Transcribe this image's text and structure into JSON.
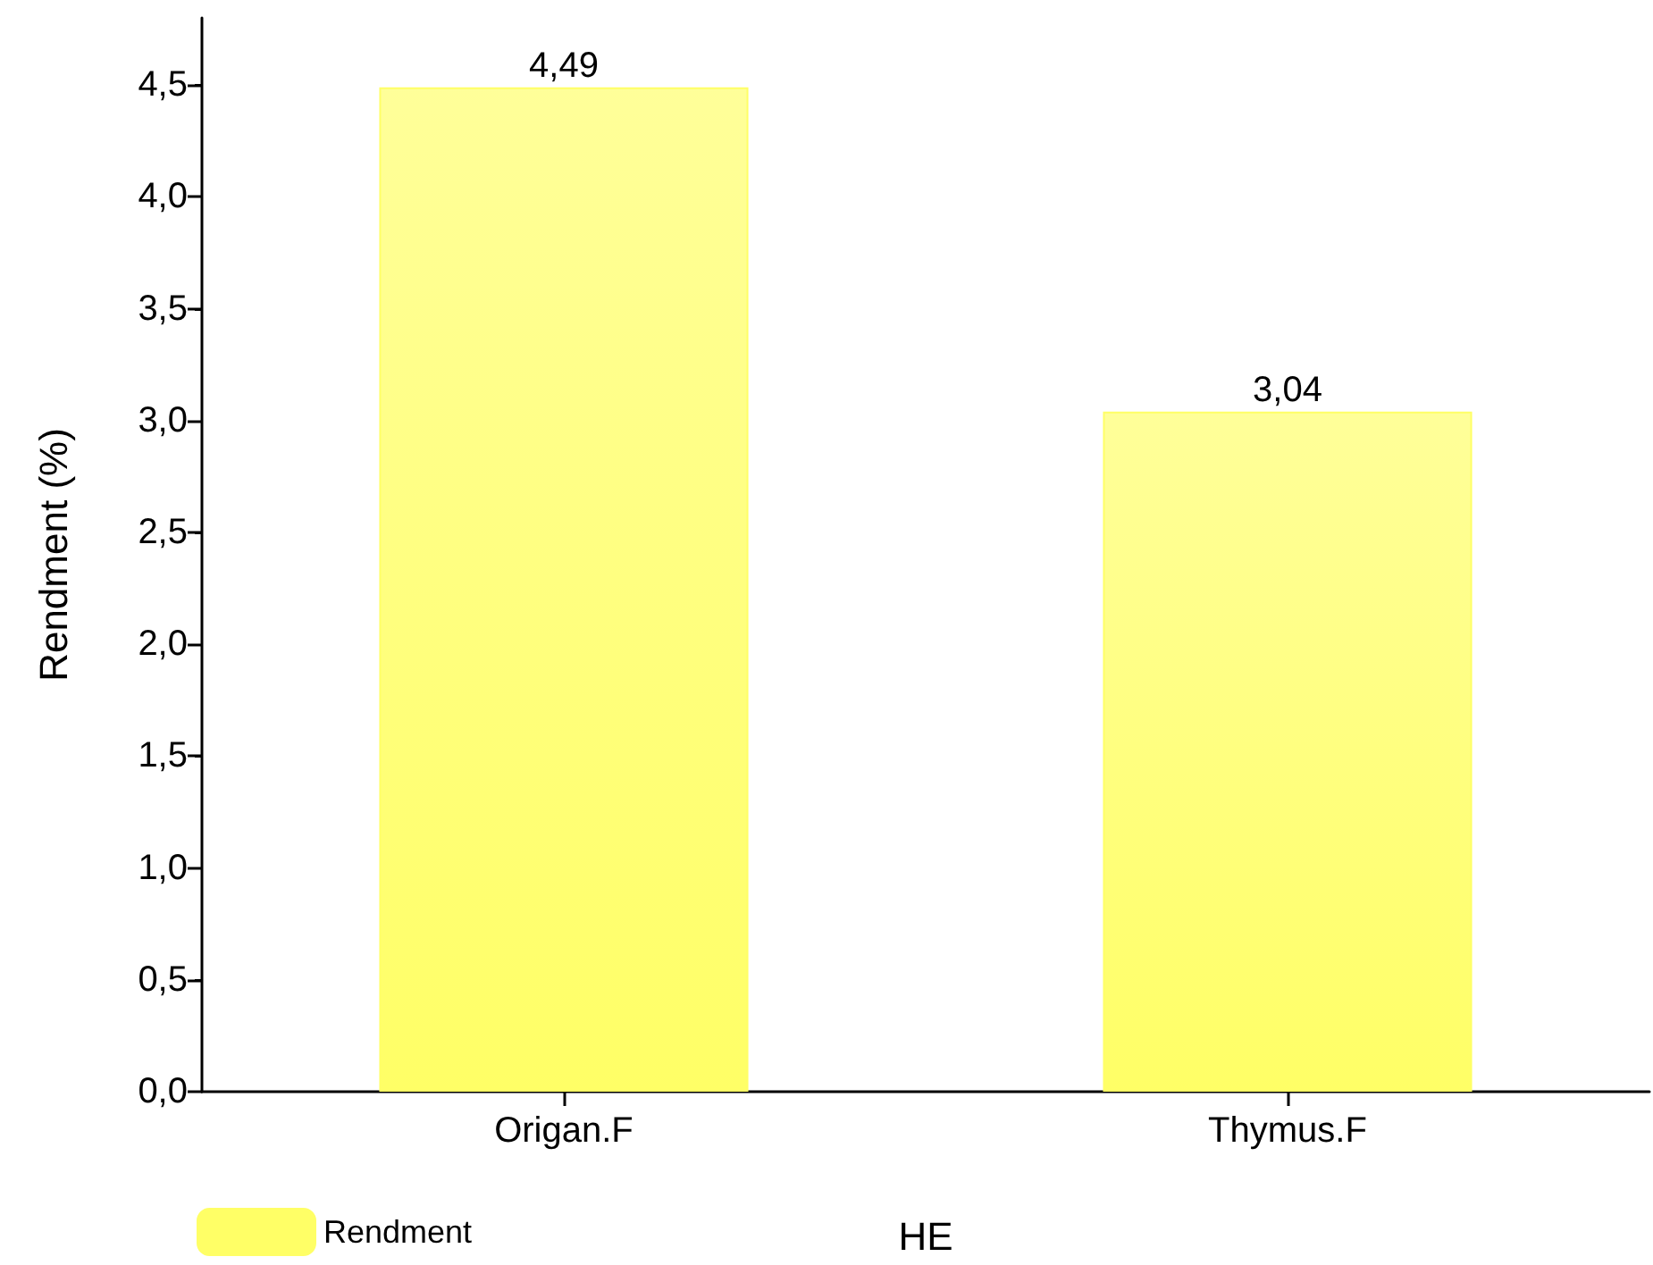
{
  "chart_data": {
    "type": "bar",
    "xlabel": "HE",
    "ylabel": "Rendment (%)",
    "categories": [
      "Origan.F",
      "Thymus.F"
    ],
    "series": [
      {
        "name": "Rendment",
        "color": "#ffff66",
        "values": [
          4.49,
          3.04
        ],
        "value_labels": [
          "4,49",
          "3,04"
        ]
      }
    ],
    "ylim": [
      0,
      4.8
    ],
    "yticks": [
      {
        "value": 0,
        "label": "0,0"
      },
      {
        "value": 0.5,
        "label": "0,5"
      },
      {
        "value": 1,
        "label": "1,0"
      },
      {
        "value": 1.5,
        "label": "1,5"
      },
      {
        "value": 2,
        "label": "2,0"
      },
      {
        "value": 2.5,
        "label": "2,5"
      },
      {
        "value": 3,
        "label": "3,0"
      },
      {
        "value": 3.5,
        "label": "3,5"
      },
      {
        "value": 4,
        "label": "4,0"
      },
      {
        "value": 4.5,
        "label": "4,5"
      }
    ],
    "legend": "bottom left",
    "grid": false
  }
}
